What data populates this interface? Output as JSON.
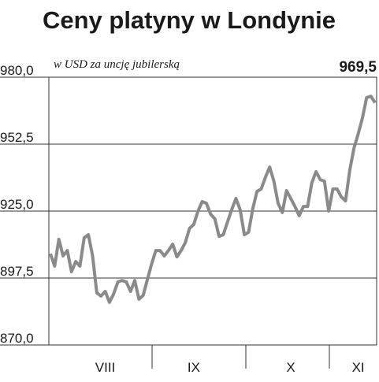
{
  "chart_data": {
    "type": "line",
    "title": "Ceny platyny w Londynie",
    "subtitle": "w USD za uncję jubilerską",
    "annotation": "969,5",
    "categories": [
      null,
      null,
      null,
      null,
      null,
      null,
      null,
      null,
      null,
      null,
      null,
      null,
      null,
      "VIII",
      null,
      null,
      null,
      null,
      null,
      null,
      null,
      null,
      null,
      null,
      null,
      null,
      null,
      null,
      null,
      null,
      null,
      null,
      null,
      null,
      "IX",
      null,
      null,
      null,
      null,
      null,
      null,
      null,
      null,
      null,
      null,
      null,
      null,
      null,
      null,
      null,
      null,
      null,
      null,
      null,
      null,
      null,
      null,
      "X",
      null,
      null,
      null,
      null,
      null,
      null,
      null,
      null,
      null,
      null,
      null,
      null,
      null,
      null,
      null,
      "XI",
      null,
      null,
      null,
      null
    ],
    "series": [
      {
        "color": "#8a8a8a",
        "values": [
          907.5,
          902.4,
          913.4,
          906.6,
          908.8,
          900.1,
          904.3,
          902.4,
          914.0,
          915.3,
          906.6,
          891.4,
          890.1,
          892.0,
          887.5,
          891.0,
          895.9,
          896.5,
          895.9,
          892.0,
          896.5,
          888.8,
          890.4,
          896.9,
          903.3,
          908.8,
          908.8,
          906.6,
          908.8,
          911.4,
          906.2,
          908.8,
          912.1,
          917.9,
          919.5,
          925.0,
          928.9,
          928.2,
          923.7,
          921.8,
          914.6,
          915.3,
          920.5,
          925.6,
          930.2,
          925.6,
          915.3,
          916.3,
          926.0,
          933.1,
          934.1,
          938.9,
          943.1,
          937.3,
          928.2,
          924.4,
          933.4,
          930.2,
          926.9,
          923.1,
          926.9,
          926.9,
          936.6,
          941.2,
          937.9,
          937.3,
          925.0,
          934.1,
          934.1,
          930.8,
          929.2,
          941.8,
          950.9,
          956.7,
          963.2,
          971.6,
          972.2,
          969.5
        ]
      }
    ],
    "ylim": [
      870,
      980
    ],
    "yticks": [
      {
        "value": 870,
        "label": "870,0"
      },
      {
        "value": 897.5,
        "label": "897,5"
      },
      {
        "value": 925,
        "label": "925,0"
      },
      {
        "value": 952.5,
        "label": "952,5"
      },
      {
        "value": 980,
        "label": "980,0"
      }
    ],
    "grid": true
  }
}
